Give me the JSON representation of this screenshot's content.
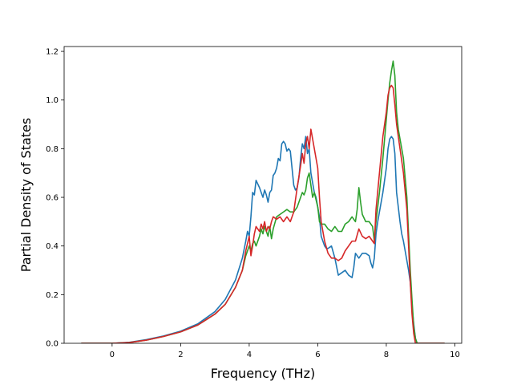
{
  "chart_data": {
    "type": "line",
    "title": "",
    "xlabel": "Frequency (THz)",
    "ylabel": "Partial Density of States",
    "xlim": [
      -1.4,
      10.2
    ],
    "ylim": [
      0.0,
      1.22
    ],
    "xticks": [
      0,
      2,
      4,
      6,
      8,
      10
    ],
    "yticks": [
      0.0,
      0.2,
      0.4,
      0.6,
      0.8,
      1.0,
      1.2
    ],
    "xtick_labels": [
      "0",
      "2",
      "4",
      "6",
      "8",
      "10"
    ],
    "ytick_labels": [
      "0.0",
      "0.2",
      "0.4",
      "0.6",
      "0.8",
      "1.0",
      "1.2"
    ],
    "grid": false,
    "legend": "none",
    "series": [
      {
        "color": "#1f77b4",
        "x": [
          -0.9,
          0,
          0.5,
          1,
          1.5,
          2,
          2.5,
          3,
          3.3,
          3.6,
          3.8,
          3.9,
          3.95,
          4.0,
          4.05,
          4.1,
          4.15,
          4.2,
          4.3,
          4.35,
          4.4,
          4.45,
          4.5,
          4.55,
          4.6,
          4.65,
          4.7,
          4.75,
          4.8,
          4.85,
          4.9,
          4.95,
          5.0,
          5.05,
          5.1,
          5.15,
          5.2,
          5.25,
          5.3,
          5.35,
          5.4,
          5.45,
          5.5,
          5.55,
          5.6,
          5.65,
          5.7,
          5.75,
          5.8,
          5.85,
          5.9,
          5.95,
          6.0,
          6.05,
          6.1,
          6.15,
          6.2,
          6.25,
          6.3,
          6.4,
          6.5,
          6.6,
          6.7,
          6.8,
          6.9,
          7.0,
          7.05,
          7.1,
          7.15,
          7.2,
          7.3,
          7.4,
          7.5,
          7.55,
          7.6,
          7.65,
          7.7,
          7.75,
          7.8,
          7.9,
          8.0,
          8.05,
          8.1,
          8.15,
          8.2,
          8.25,
          8.3,
          8.35,
          8.4,
          8.45,
          8.5,
          8.55,
          8.6,
          8.65,
          8.7,
          8.75,
          8.8,
          8.85,
          8.9,
          9.0,
          9.7
        ],
        "y": [
          0.0,
          0.0,
          0.004,
          0.015,
          0.03,
          0.05,
          0.08,
          0.13,
          0.18,
          0.26,
          0.35,
          0.42,
          0.46,
          0.44,
          0.52,
          0.62,
          0.61,
          0.67,
          0.64,
          0.62,
          0.6,
          0.63,
          0.61,
          0.58,
          0.62,
          0.63,
          0.69,
          0.7,
          0.72,
          0.76,
          0.75,
          0.82,
          0.83,
          0.82,
          0.79,
          0.8,
          0.79,
          0.72,
          0.65,
          0.63,
          0.64,
          0.68,
          0.76,
          0.82,
          0.8,
          0.85,
          0.78,
          0.8,
          0.7,
          0.66,
          0.62,
          0.6,
          0.56,
          0.52,
          0.44,
          0.42,
          0.4,
          0.39,
          0.39,
          0.4,
          0.35,
          0.28,
          0.29,
          0.3,
          0.28,
          0.27,
          0.31,
          0.37,
          0.36,
          0.35,
          0.37,
          0.37,
          0.36,
          0.33,
          0.31,
          0.35,
          0.45,
          0.5,
          0.54,
          0.62,
          0.72,
          0.8,
          0.84,
          0.85,
          0.84,
          0.78,
          0.62,
          0.56,
          0.5,
          0.45,
          0.42,
          0.38,
          0.34,
          0.3,
          0.25,
          0.15,
          0.08,
          0.02,
          0.0,
          0.0,
          0.0
        ]
      },
      {
        "color": "#2ca02c",
        "x": [
          -0.9,
          0,
          0.5,
          1,
          1.5,
          2,
          2.5,
          3,
          3.3,
          3.6,
          3.8,
          3.9,
          4.0,
          4.05,
          4.1,
          4.15,
          4.2,
          4.3,
          4.35,
          4.4,
          4.45,
          4.5,
          4.55,
          4.6,
          4.65,
          4.7,
          4.8,
          4.9,
          5.0,
          5.1,
          5.2,
          5.3,
          5.4,
          5.5,
          5.55,
          5.6,
          5.65,
          5.7,
          5.75,
          5.8,
          5.85,
          5.9,
          6.0,
          6.05,
          6.1,
          6.2,
          6.3,
          6.4,
          6.5,
          6.55,
          6.6,
          6.7,
          6.8,
          6.9,
          7.0,
          7.1,
          7.15,
          7.2,
          7.25,
          7.3,
          7.4,
          7.5,
          7.6,
          7.65,
          7.7,
          7.8,
          7.9,
          8.0,
          8.05,
          8.1,
          8.15,
          8.2,
          8.25,
          8.3,
          8.35,
          8.4,
          8.5,
          8.6,
          8.65,
          8.7,
          8.75,
          8.8,
          8.85,
          8.9,
          9.0,
          9.7
        ],
        "y": [
          0.0,
          0.0,
          0.003,
          0.013,
          0.028,
          0.047,
          0.075,
          0.12,
          0.16,
          0.23,
          0.3,
          0.36,
          0.4,
          0.38,
          0.41,
          0.42,
          0.4,
          0.44,
          0.47,
          0.45,
          0.48,
          0.46,
          0.44,
          0.48,
          0.43,
          0.47,
          0.52,
          0.53,
          0.54,
          0.55,
          0.54,
          0.54,
          0.56,
          0.6,
          0.62,
          0.61,
          0.63,
          0.68,
          0.7,
          0.65,
          0.6,
          0.62,
          0.56,
          0.5,
          0.49,
          0.49,
          0.47,
          0.46,
          0.48,
          0.47,
          0.46,
          0.46,
          0.49,
          0.5,
          0.52,
          0.5,
          0.55,
          0.64,
          0.58,
          0.53,
          0.5,
          0.5,
          0.48,
          0.42,
          0.5,
          0.62,
          0.76,
          0.92,
          1.0,
          1.07,
          1.12,
          1.16,
          1.1,
          0.95,
          0.88,
          0.84,
          0.76,
          0.6,
          0.45,
          0.3,
          0.18,
          0.07,
          0.02,
          0.0,
          0.0,
          0.0
        ]
      },
      {
        "color": "#d62728",
        "x": [
          -0.9,
          0,
          0.5,
          1,
          1.5,
          2,
          2.5,
          3,
          3.3,
          3.6,
          3.8,
          3.9,
          4.0,
          4.05,
          4.1,
          4.15,
          4.2,
          4.3,
          4.35,
          4.4,
          4.45,
          4.5,
          4.55,
          4.6,
          4.65,
          4.7,
          4.8,
          4.9,
          5.0,
          5.1,
          5.2,
          5.3,
          5.4,
          5.5,
          5.55,
          5.6,
          5.65,
          5.7,
          5.75,
          5.8,
          5.85,
          5.9,
          6.0,
          6.05,
          6.1,
          6.2,
          6.3,
          6.4,
          6.5,
          6.6,
          6.7,
          6.8,
          6.9,
          7.0,
          7.1,
          7.2,
          7.3,
          7.4,
          7.5,
          7.6,
          7.65,
          7.7,
          7.8,
          7.9,
          8.0,
          8.05,
          8.1,
          8.15,
          8.2,
          8.25,
          8.3,
          8.35,
          8.4,
          8.5,
          8.6,
          8.65,
          8.7,
          8.75,
          8.8,
          8.85,
          8.9,
          9.0,
          9.7
        ],
        "y": [
          0.0,
          0.0,
          0.003,
          0.013,
          0.028,
          0.047,
          0.075,
          0.12,
          0.16,
          0.23,
          0.3,
          0.38,
          0.44,
          0.36,
          0.4,
          0.45,
          0.48,
          0.46,
          0.49,
          0.47,
          0.5,
          0.46,
          0.48,
          0.47,
          0.5,
          0.52,
          0.51,
          0.52,
          0.5,
          0.52,
          0.5,
          0.54,
          0.64,
          0.73,
          0.78,
          0.74,
          0.82,
          0.85,
          0.8,
          0.88,
          0.84,
          0.8,
          0.72,
          0.6,
          0.5,
          0.42,
          0.37,
          0.35,
          0.35,
          0.34,
          0.35,
          0.38,
          0.4,
          0.42,
          0.42,
          0.47,
          0.44,
          0.43,
          0.44,
          0.42,
          0.41,
          0.55,
          0.7,
          0.85,
          0.95,
          1.02,
          1.05,
          1.06,
          1.05,
          0.98,
          0.9,
          0.85,
          0.8,
          0.7,
          0.55,
          0.4,
          0.25,
          0.12,
          0.04,
          0.0,
          0.0,
          0.0,
          0.0
        ]
      }
    ]
  }
}
